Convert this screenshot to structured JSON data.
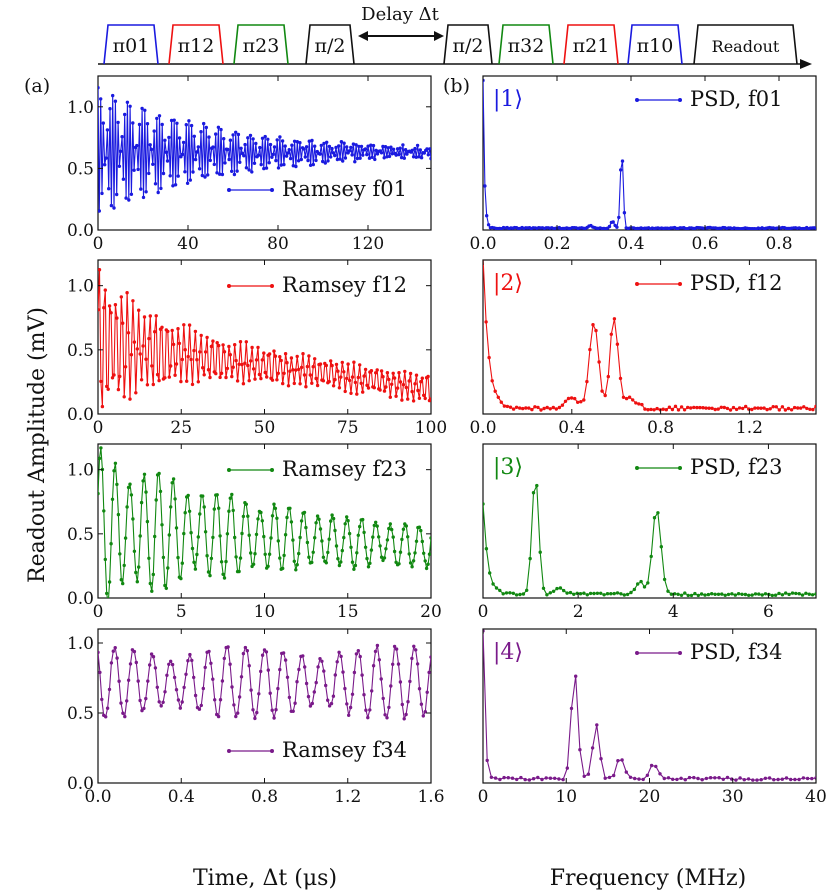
{
  "figure": {
    "panel_a_label": "(a)",
    "panel_b_label": "(b)",
    "y_axis_label": "Readout Amplitude (mV)",
    "x_axis_label_left": "Time, Δt (μs)",
    "x_axis_label_right": "Frequency (MHz)",
    "colors": {
      "blue": "#1a1adf",
      "red": "#ee1111",
      "green": "#118811",
      "purple": "#7a1a8a",
      "black": "#111111"
    }
  },
  "pulse_sequence": {
    "delay_label": "Delay Δt",
    "pulses": [
      {
        "label": "π01",
        "color": "#1a1adf"
      },
      {
        "label": "π12",
        "color": "#ee1111"
      },
      {
        "label": "π23",
        "color": "#118811"
      },
      {
        "label": "π/2",
        "color": "#111111"
      },
      {
        "label": "π/2",
        "color": "#111111"
      },
      {
        "label": "π32",
        "color": "#118811"
      },
      {
        "label": "π21",
        "color": "#ee1111"
      },
      {
        "label": "π10",
        "color": "#1a1adf"
      },
      {
        "label": "Readout",
        "color": "#111111"
      }
    ]
  },
  "chart_data": [
    {
      "type": "line",
      "id": "ramsey-f01",
      "panel": "a",
      "legend": "Ramsey f01",
      "color": "#1a1adf",
      "xlim": [
        0,
        148
      ],
      "ylim": [
        0,
        1.25
      ],
      "xticks": [
        0,
        40,
        80,
        120
      ],
      "yticks": [
        0.0,
        0.5,
        1.0
      ],
      "series": {
        "name": "Ramsey f01",
        "model": "damped-oscillation",
        "x_range": [
          0,
          148
        ],
        "n_points": 250,
        "offset": 0.63,
        "amplitude": 0.52,
        "decay_time": 55,
        "period": 1.9,
        "noise": 0.04
      }
    },
    {
      "type": "line",
      "id": "psd-f01",
      "panel": "b",
      "legend": "PSD, f01",
      "state_label": "|1⟩",
      "color": "#1a1adf",
      "xlim": [
        0,
        0.9
      ],
      "ylim": [
        0,
        1.25
      ],
      "xticks": [
        0.0,
        0.2,
        0.4,
        0.6,
        0.8
      ],
      "series": {
        "name": "PSD, f01",
        "model": "spectrum",
        "x_range": [
          0,
          0.9
        ],
        "n_points": 180,
        "baseline": 0.01,
        "dc_peak": 1.2,
        "dc_width": 0.004,
        "peaks": [
          {
            "x": 0.375,
            "height": 0.62,
            "width": 0.004
          },
          {
            "x": 0.35,
            "height": 0.05,
            "width": 0.005
          },
          {
            "x": 0.29,
            "height": 0.02,
            "width": 0.005
          }
        ]
      }
    },
    {
      "type": "line",
      "id": "ramsey-f12",
      "panel": "a",
      "legend": "Ramsey f12",
      "color": "#ee1111",
      "xlim": [
        0,
        100
      ],
      "ylim": [
        0,
        1.2
      ],
      "xticks": [
        0,
        25,
        50,
        75,
        100
      ],
      "yticks": [
        0.0,
        0.5,
        1.0
      ],
      "series": {
        "name": "Ramsey f12",
        "model": "damped-beat",
        "x_range": [
          0,
          100
        ],
        "n_points": 230,
        "offset_start": 0.55,
        "offset_end": 0.2,
        "amplitude": 0.55,
        "decay_time": 18,
        "period": 1.7,
        "beat_period": 9,
        "noise": 0.05
      }
    },
    {
      "type": "line",
      "id": "psd-f12",
      "panel": "b",
      "legend": "PSD, f12",
      "state_label": "|2⟩",
      "color": "#ee1111",
      "xlim": [
        0,
        1.5
      ],
      "ylim": [
        0,
        1.2
      ],
      "xticks": [
        0.0,
        0.4,
        0.8,
        1.2
      ],
      "series": {
        "name": "PSD, f12",
        "model": "spectrum",
        "x_range": [
          0,
          1.5
        ],
        "n_points": 110,
        "baseline": 0.03,
        "dc_peak": 1.18,
        "dc_width": 0.025,
        "peaks": [
          {
            "x": 0.5,
            "height": 0.68,
            "width": 0.02
          },
          {
            "x": 0.59,
            "height": 0.7,
            "width": 0.018
          },
          {
            "x": 0.66,
            "height": 0.08,
            "width": 0.03
          },
          {
            "x": 0.4,
            "height": 0.07,
            "width": 0.03
          }
        ]
      }
    },
    {
      "type": "line",
      "id": "ramsey-f23",
      "panel": "a",
      "legend": "Ramsey f23",
      "color": "#118811",
      "xlim": [
        0,
        20
      ],
      "ylim": [
        0,
        1.2
      ],
      "xticks": [
        0,
        5,
        10,
        15,
        20
      ],
      "yticks": [
        0.0,
        0.5,
        1.0
      ],
      "series": {
        "name": "Ramsey f23",
        "model": "damped-beat",
        "x_range": [
          0,
          20
        ],
        "n_points": 230,
        "offset_start": 0.55,
        "offset_end": 0.4,
        "amplitude": 0.55,
        "decay_time": 9,
        "period": 0.87,
        "beat_period": 3.8,
        "noise": 0.04
      }
    },
    {
      "type": "line",
      "id": "psd-f23",
      "panel": "b",
      "legend": "PSD, f23",
      "state_label": "|3⟩",
      "color": "#118811",
      "xlim": [
        0,
        7
      ],
      "ylim": [
        0,
        1.2
      ],
      "xticks": [
        0,
        2,
        4,
        6
      ],
      "series": {
        "name": "PSD, f23",
        "model": "spectrum",
        "x_range": [
          0,
          7
        ],
        "n_points": 100,
        "baseline": 0.02,
        "dc_peak": 0.7,
        "dc_width": 0.1,
        "peaks": [
          {
            "x": 1.1,
            "height": 0.93,
            "width": 0.07
          },
          {
            "x": 3.65,
            "height": 0.66,
            "width": 0.09
          },
          {
            "x": 3.3,
            "height": 0.1,
            "width": 0.08
          },
          {
            "x": 1.6,
            "height": 0.05,
            "width": 0.1
          }
        ]
      }
    },
    {
      "type": "line",
      "id": "ramsey-f34",
      "panel": "a",
      "legend": "Ramsey f34",
      "color": "#7a1a8a",
      "xlim": [
        0,
        1.6
      ],
      "ylim": [
        0,
        1.1
      ],
      "xticks": [
        0.0,
        0.4,
        0.8,
        1.2,
        1.6
      ],
      "yticks": [
        0.0,
        0.5,
        1.0
      ],
      "series": {
        "name": "Ramsey f34",
        "model": "beat",
        "x_range": [
          0,
          1.6
        ],
        "n_points": 175,
        "offset": 0.72,
        "amplitude": 0.26,
        "decay_time": 6,
        "period": 0.09,
        "beat_period": 0.7,
        "noise": 0.04
      }
    },
    {
      "type": "line",
      "id": "psd-f34",
      "panel": "b",
      "legend": "PSD, f34",
      "state_label": "|4⟩",
      "color": "#7a1a8a",
      "xlim": [
        0,
        40
      ],
      "ylim": [
        0,
        1.1
      ],
      "xticks": [
        0,
        10,
        20,
        30,
        40
      ],
      "series": {
        "name": "PSD, f34",
        "model": "spectrum",
        "x_range": [
          0,
          40
        ],
        "n_points": 80,
        "baseline": 0.02,
        "dc_peak": 1.05,
        "dc_width": 0.25,
        "peaks": [
          {
            "x": 11,
            "height": 0.78,
            "width": 0.4
          },
          {
            "x": 13.6,
            "height": 0.4,
            "width": 0.4
          },
          {
            "x": 16.5,
            "height": 0.16,
            "width": 0.45
          },
          {
            "x": 20.5,
            "height": 0.1,
            "width": 0.5
          }
        ]
      }
    }
  ]
}
